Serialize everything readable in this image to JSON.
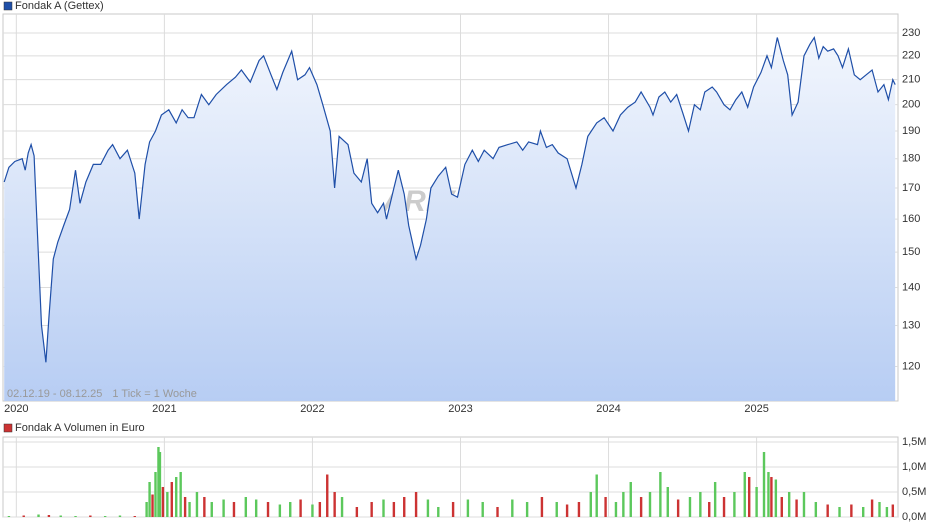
{
  "chart_data": [
    {
      "type": "line",
      "log_scale": true,
      "grid": true,
      "legend": "top-left",
      "annotations": [
        "02.12.19 - 08.12.25",
        "1 Tick = 1 Woche"
      ],
      "watermark": "ARIVA.DE",
      "x": [
        2019.918,
        2019.95,
        2019.99,
        2020.04,
        2020.06,
        2020.08,
        2020.1,
        2020.12,
        2020.14,
        2020.17,
        2020.2,
        2020.22,
        2020.25,
        2020.28,
        2020.32,
        2020.36,
        2020.4,
        2020.43,
        2020.47,
        2020.52,
        2020.57,
        2020.62,
        2020.65,
        2020.7,
        2020.75,
        2020.8,
        2020.83,
        2020.87,
        2020.9,
        2020.94,
        2020.98,
        2021.03,
        2021.08,
        2021.12,
        2021.16,
        2021.2,
        2021.25,
        2021.3,
        2021.35,
        2021.42,
        2021.48,
        2021.52,
        2021.58,
        2021.64,
        2021.67,
        2021.72,
        2021.76,
        2021.8,
        2021.86,
        2021.9,
        2021.95,
        2021.98,
        2022.03,
        2022.07,
        2022.12,
        2022.15,
        2022.18,
        2022.24,
        2022.28,
        2022.33,
        2022.37,
        2022.4,
        2022.44,
        2022.48,
        2022.5,
        2022.55,
        2022.58,
        2022.62,
        2022.65,
        2022.7,
        2022.73,
        2022.77,
        2022.8,
        2022.85,
        2022.9,
        2022.94,
        2022.98,
        2023.03,
        2023.08,
        2023.12,
        2023.16,
        2023.22,
        2023.26,
        2023.32,
        2023.38,
        2023.42,
        2023.46,
        2023.52,
        2023.54,
        2023.58,
        2023.62,
        2023.66,
        2023.72,
        2023.78,
        2023.82,
        2023.86,
        2023.92,
        2023.97,
        2024.03,
        2024.08,
        2024.13,
        2024.18,
        2024.22,
        2024.28,
        2024.3,
        2024.34,
        2024.38,
        2024.42,
        2024.46,
        2024.5,
        2024.54,
        2024.58,
        2024.62,
        2024.65,
        2024.7,
        2024.73,
        2024.78,
        2024.82,
        2024.86,
        2024.9,
        2024.94,
        2024.98,
        2025.03,
        2025.07,
        2025.1,
        2025.14,
        2025.18,
        2025.21,
        2025.24,
        2025.28,
        2025.32,
        2025.36,
        2025.39,
        2025.42,
        2025.45,
        2025.48,
        2025.52,
        2025.55,
        2025.58,
        2025.62,
        2025.66,
        2025.7,
        2025.74,
        2025.78,
        2025.82,
        2025.86,
        2025.89,
        2025.92,
        2025.936
      ],
      "series": [
        {
          "name": "Fondak A (Gettex)",
          "color": "#1f4fa8",
          "values": [
            172,
            177,
            179,
            180,
            176,
            182,
            185,
            181,
            158,
            130,
            121,
            132,
            148,
            153,
            158,
            163,
            176,
            165,
            172,
            178,
            178,
            183,
            185,
            180,
            183,
            175,
            160,
            178,
            186,
            190,
            196,
            198,
            193,
            198,
            195,
            195,
            204,
            200,
            204,
            208,
            211,
            214,
            209,
            218,
            220,
            212,
            206,
            213,
            222,
            210,
            212,
            215,
            208,
            200,
            190,
            170,
            188,
            185,
            175,
            172,
            180,
            165,
            162,
            165,
            160,
            170,
            176,
            168,
            158,
            148,
            152,
            160,
            170,
            174,
            177,
            168,
            167,
            178,
            183,
            179,
            183,
            180,
            184,
            185,
            186,
            183,
            186,
            185,
            190,
            184,
            185,
            182,
            180,
            170,
            178,
            188,
            193,
            195,
            190,
            196,
            199,
            201,
            205,
            199,
            196,
            203,
            205,
            201,
            204,
            197,
            190,
            200,
            198,
            205,
            207,
            205,
            200,
            198,
            202,
            205,
            199,
            207,
            213,
            220,
            215,
            228,
            218,
            212,
            196,
            201,
            220,
            225,
            228,
            219,
            224,
            222,
            223,
            220,
            215,
            223,
            212,
            210,
            212,
            214,
            205,
            208,
            202,
            210,
            208
          ]
        }
      ],
      "xlim": [
        2019.91,
        2025.955
      ],
      "xticks": [
        2020,
        2021,
        2022,
        2023,
        2024,
        2025
      ],
      "ylim": [
        112.2,
        238.7
      ],
      "yticks": [
        120,
        130,
        140,
        150,
        160,
        170,
        180,
        190,
        200,
        210,
        220,
        230
      ]
    },
    {
      "type": "bar",
      "grid": true,
      "legend": "top-left",
      "x": [
        2019.95,
        2020.05,
        2020.15,
        2020.22,
        2020.3,
        2020.4,
        2020.5,
        2020.6,
        2020.7,
        2020.8,
        2020.88,
        2020.9,
        2020.92,
        2020.94,
        2020.96,
        2020.97,
        2020.99,
        2021.02,
        2021.05,
        2021.08,
        2021.11,
        2021.14,
        2021.17,
        2021.22,
        2021.27,
        2021.32,
        2021.4,
        2021.47,
        2021.55,
        2021.62,
        2021.7,
        2021.78,
        2021.85,
        2021.92,
        2022.0,
        2022.05,
        2022.1,
        2022.15,
        2022.2,
        2022.3,
        2022.4,
        2022.48,
        2022.55,
        2022.62,
        2022.7,
        2022.78,
        2022.85,
        2022.95,
        2023.05,
        2023.15,
        2023.25,
        2023.35,
        2023.45,
        2023.55,
        2023.65,
        2023.72,
        2023.8,
        2023.88,
        2023.92,
        2023.98,
        2024.05,
        2024.1,
        2024.15,
        2024.22,
        2024.28,
        2024.35,
        2024.4,
        2024.47,
        2024.55,
        2024.62,
        2024.68,
        2024.72,
        2024.78,
        2024.85,
        2024.92,
        2024.95,
        2025.0,
        2025.05,
        2025.08,
        2025.1,
        2025.13,
        2025.17,
        2025.22,
        2025.27,
        2025.32,
        2025.4,
        2025.48,
        2025.56,
        2025.64,
        2025.72,
        2025.78,
        2025.83,
        2025.88,
        2025.92
      ],
      "series": [
        {
          "name": "Fondak A Volumen in Euro",
          "color": "#cc3333",
          "values": [
            20000,
            30000,
            50000,
            40000,
            30000,
            20000,
            30000,
            20000,
            30000,
            20000,
            300000,
            700000,
            450000,
            900000,
            1400000,
            1300000,
            600000,
            500000,
            700000,
            800000,
            900000,
            400000,
            300000,
            500000,
            400000,
            300000,
            350000,
            300000,
            400000,
            350000,
            300000,
            250000,
            300000,
            350000,
            250000,
            300000,
            850000,
            500000,
            400000,
            200000,
            300000,
            350000,
            300000,
            400000,
            500000,
            350000,
            200000,
            300000,
            350000,
            300000,
            200000,
            350000,
            300000,
            400000,
            300000,
            250000,
            300000,
            500000,
            850000,
            400000,
            300000,
            500000,
            700000,
            400000,
            500000,
            900000,
            600000,
            350000,
            400000,
            500000,
            300000,
            700000,
            400000,
            500000,
            900000,
            800000,
            600000,
            1300000,
            900000,
            800000,
            750000,
            400000,
            500000,
            350000,
            500000,
            300000,
            250000,
            200000,
            250000,
            200000,
            350000,
            300000,
            200000,
            250000
          ],
          "colors": [
            "#5cc85c",
            "#cc3333",
            "#5cc85c",
            "#cc3333",
            "#5cc85c",
            "#5cc85c",
            "#cc3333",
            "#5cc85c",
            "#5cc85c",
            "#cc3333",
            "#5cc85c",
            "#5cc85c",
            "#cc3333",
            "#5cc85c",
            "#5cc85c",
            "#5cc85c",
            "#cc3333",
            "#5cc85c",
            "#cc3333",
            "#5cc85c",
            "#5cc85c",
            "#cc3333",
            "#5cc85c",
            "#5cc85c",
            "#cc3333",
            "#5cc85c",
            "#5cc85c",
            "#cc3333",
            "#5cc85c",
            "#5cc85c",
            "#cc3333",
            "#5cc85c",
            "#5cc85c",
            "#cc3333",
            "#5cc85c",
            "#cc3333",
            "#cc3333",
            "#cc3333",
            "#5cc85c",
            "#cc3333",
            "#cc3333",
            "#5cc85c",
            "#cc3333",
            "#cc3333",
            "#cc3333",
            "#5cc85c",
            "#5cc85c",
            "#cc3333",
            "#5cc85c",
            "#5cc85c",
            "#cc3333",
            "#5cc85c",
            "#5cc85c",
            "#cc3333",
            "#5cc85c",
            "#cc3333",
            "#cc3333",
            "#5cc85c",
            "#5cc85c",
            "#cc3333",
            "#5cc85c",
            "#5cc85c",
            "#5cc85c",
            "#cc3333",
            "#5cc85c",
            "#5cc85c",
            "#5cc85c",
            "#cc3333",
            "#5cc85c",
            "#5cc85c",
            "#cc3333",
            "#5cc85c",
            "#cc3333",
            "#5cc85c",
            "#5cc85c",
            "#cc3333",
            "#5cc85c",
            "#5cc85c",
            "#5cc85c",
            "#cc3333",
            "#5cc85c",
            "#cc3333",
            "#5cc85c",
            "#cc3333",
            "#5cc85c",
            "#5cc85c",
            "#cc3333",
            "#5cc85c",
            "#cc3333",
            "#5cc85c",
            "#cc3333",
            "#5cc85c",
            "#5cc85c",
            "#cc3333"
          ]
        }
      ],
      "xlim": [
        2019.91,
        2025.955
      ],
      "xticks": [
        2020,
        2021,
        2022,
        2023,
        2024,
        2025
      ],
      "ylim": [
        0,
        1600000
      ],
      "yticks": [
        {
          "value": 0,
          "label": "0,0M"
        },
        {
          "value": 500000,
          "label": "0,5M"
        },
        {
          "value": 1000000,
          "label": "1,0M"
        },
        {
          "value": 1500000,
          "label": "1,5M"
        }
      ]
    }
  ]
}
